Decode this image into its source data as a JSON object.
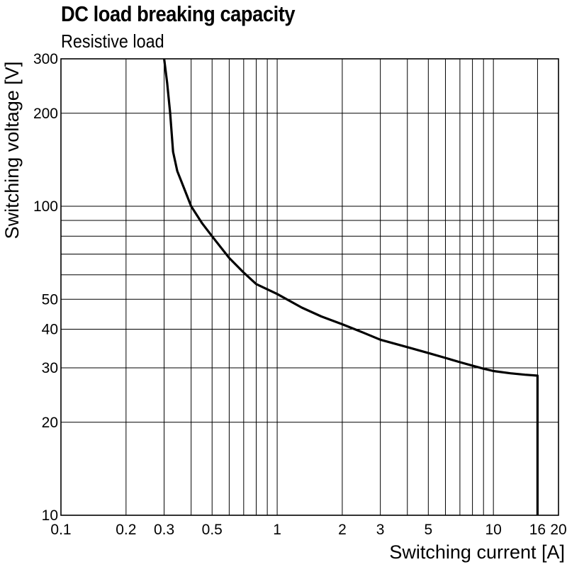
{
  "chart_data": {
    "type": "line",
    "title": "DC load breaking capacity",
    "subtitle": "Resistive load",
    "xlabel": "Switching current [A]",
    "ylabel": "Switching voltage [V]",
    "x_scale": "log",
    "y_scale": "log",
    "xlim": [
      0.1,
      20
    ],
    "ylim": [
      10,
      300
    ],
    "grid": true,
    "legend": "none",
    "x_ticks": [
      {
        "value": 0.1,
        "label": "0.1"
      },
      {
        "value": 0.2,
        "label": "0.2"
      },
      {
        "value": 0.3,
        "label": "0.3"
      },
      {
        "value": 0.5,
        "label": "0.5"
      },
      {
        "value": 1,
        "label": "1"
      },
      {
        "value": 2,
        "label": "2"
      },
      {
        "value": 3,
        "label": "3"
      },
      {
        "value": 5,
        "label": "5"
      },
      {
        "value": 10,
        "label": "10"
      },
      {
        "value": 16,
        "label": "16"
      },
      {
        "value": 20,
        "label": "20"
      }
    ],
    "x_gridlines": [
      0.2,
      0.3,
      0.4,
      0.5,
      0.6,
      0.7,
      0.8,
      0.9,
      1,
      2,
      3,
      4,
      5,
      6,
      7,
      8,
      9,
      10,
      16
    ],
    "y_ticks": [
      {
        "value": 10,
        "label": "10"
      },
      {
        "value": 20,
        "label": "20"
      },
      {
        "value": 30,
        "label": "30"
      },
      {
        "value": 40,
        "label": "40"
      },
      {
        "value": 50,
        "label": "50"
      },
      {
        "value": 100,
        "label": "100"
      },
      {
        "value": 200,
        "label": "200"
      },
      {
        "value": 300,
        "label": "300"
      }
    ],
    "y_gridlines": [
      20,
      30,
      40,
      50,
      60,
      70,
      80,
      90,
      100,
      200
    ],
    "series": [
      {
        "points": [
          [
            0.3,
            300
          ],
          [
            0.31,
            250
          ],
          [
            0.32,
            200
          ],
          [
            0.33,
            150
          ],
          [
            0.345,
            130
          ],
          [
            0.37,
            115
          ],
          [
            0.4,
            100
          ],
          [
            0.45,
            88
          ],
          [
            0.5,
            80
          ],
          [
            0.6,
            68
          ],
          [
            0.7,
            61
          ],
          [
            0.8,
            56
          ],
          [
            1,
            52
          ],
          [
            1.3,
            47
          ],
          [
            1.6,
            44
          ],
          [
            2,
            41.5
          ],
          [
            2.5,
            39
          ],
          [
            3,
            37
          ],
          [
            4,
            35
          ],
          [
            5,
            33.5
          ],
          [
            6,
            32.3
          ],
          [
            7,
            31.3
          ],
          [
            8,
            30.5
          ],
          [
            9,
            29.8
          ],
          [
            10,
            29.3
          ],
          [
            12,
            28.8
          ],
          [
            14,
            28.5
          ],
          [
            16,
            28.3
          ],
          [
            16,
            10
          ]
        ]
      }
    ]
  }
}
